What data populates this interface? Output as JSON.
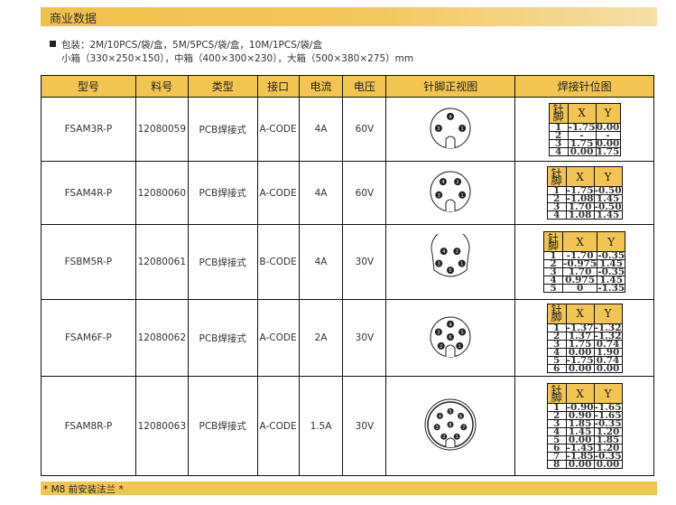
{
  "section_title": "商业数据",
  "packaging": {
    "line1": "包装：2M/10PCS/袋/盒，5M/5PCS/袋/盒，10M/1PCS/袋/盒",
    "line2": "小箱（330×250×150），中箱（400×300×230），大箱（500×380×275）mm"
  },
  "columns": [
    "型号",
    "料号",
    "类型",
    "接口",
    "电流",
    "电压",
    "针脚正视图",
    "焊接针位图"
  ],
  "pin_table_headers": [
    "针脚",
    "X",
    "Y"
  ],
  "rows": [
    {
      "model": "FSAM3R-P",
      "part": "12080059",
      "type": "PCB焊接式",
      "coding": "A-CODE",
      "current": "4A",
      "voltage": "60V",
      "shape": "round",
      "pins": [
        [
          "1",
          "-1.75",
          "0.00"
        ],
        [
          "2",
          "-",
          "-"
        ],
        [
          "3",
          "1.75",
          "0.00"
        ],
        [
          "4",
          "0.00",
          "1.75"
        ]
      ]
    },
    {
      "model": "FSAM4R-P",
      "part": "12080060",
      "type": "PCB焊接式",
      "coding": "A-CODE",
      "current": "4A",
      "voltage": "60V",
      "shape": "round",
      "pins": [
        [
          "1",
          "-1.75",
          "-0.50"
        ],
        [
          "2",
          "-1.08",
          "1.45"
        ],
        [
          "3",
          "1.70",
          "-0.50"
        ],
        [
          "4",
          "1.08",
          "1.45"
        ]
      ]
    },
    {
      "model": "FSBM5R-P",
      "part": "12080061",
      "type": "PCB焊接式",
      "coding": "B-CODE",
      "current": "4A",
      "voltage": "30V",
      "shape": "bcode",
      "pins": [
        [
          "1",
          "-1.70",
          "-0.35"
        ],
        [
          "2",
          "-0.975",
          "1.45"
        ],
        [
          "3",
          "1.70",
          "-0.35"
        ],
        [
          "4",
          "0.975",
          "1.45"
        ],
        [
          "5",
          "0",
          "-1.35"
        ]
      ]
    },
    {
      "model": "FSAM6F-P",
      "part": "12080062",
      "type": "PCB焊接式",
      "coding": "A-CODE",
      "current": "2A",
      "voltage": "30V",
      "shape": "round",
      "pins": [
        [
          "1",
          "-1.37",
          "-1.32"
        ],
        [
          "2",
          "1.37",
          "-1.32"
        ],
        [
          "3",
          "1.75",
          "0.74"
        ],
        [
          "4",
          "0.00",
          "1.90"
        ],
        [
          "5",
          "-1.75",
          "0.74"
        ],
        [
          "6",
          "0.00",
          "0.00"
        ]
      ]
    },
    {
      "model": "FSAM8R-P",
      "part": "12080063",
      "type": "PCB焊接式",
      "coding": "A-CODE",
      "current": "1.5A",
      "voltage": "30V",
      "shape": "double",
      "pins": [
        [
          "1",
          "-0.90",
          "-1.65"
        ],
        [
          "2",
          "0.90",
          "-1.65"
        ],
        [
          "3",
          "1.85",
          "-0.35"
        ],
        [
          "4",
          "1.45",
          "1.20"
        ],
        [
          "5",
          "0.00",
          "1.85"
        ],
        [
          "6",
          "-1.45",
          "1.20"
        ],
        [
          "7",
          "-1.85",
          "-0.35"
        ],
        [
          "8",
          "0.00",
          "0.00"
        ]
      ]
    }
  ],
  "footer_note": "* M8 前安装法兰 *",
  "colors": {
    "accent": "#f2c451"
  }
}
